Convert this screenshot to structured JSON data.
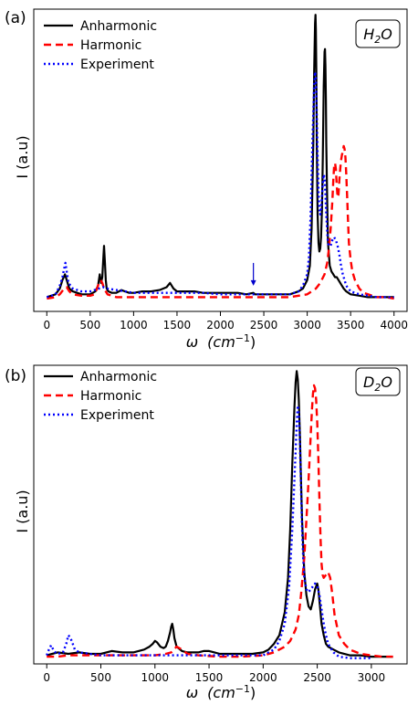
{
  "chart_data": [
    {
      "type": "line",
      "panel_label": "(a)",
      "badge_base": "H",
      "badge_sub": "2",
      "badge_tail": "O",
      "ylabel": "I  (a.u)",
      "xlabel_symbol": "ω",
      "xlabel_unit": "(cm",
      "xlabel_exp": "−1",
      "xlabel_close": ")",
      "xlim": [
        -150,
        4150
      ],
      "ylim": [
        -0.04,
        1.02
      ],
      "xticks": [
        0,
        500,
        1000,
        1500,
        2000,
        2500,
        3000,
        3500,
        4000
      ],
      "legend": "top-left",
      "arrow": {
        "x": 2380,
        "y_top": 0.13,
        "y_tip": 0.05,
        "color": "#0000cc"
      },
      "series": [
        {
          "name": "Anharmonic",
          "color": "#000000",
          "dash": "",
          "width": 2.2,
          "x": [
            0,
            100,
            150,
            180,
            210,
            230,
            260,
            300,
            400,
            500,
            560,
            590,
            610,
            625,
            640,
            650,
            660,
            670,
            680,
            690,
            710,
            750,
            800,
            860,
            900,
            950,
            1000,
            1100,
            1200,
            1300,
            1380,
            1420,
            1440,
            1460,
            1500,
            1600,
            1700,
            1800,
            1900,
            2000,
            2100,
            2200,
            2300,
            2380,
            2400,
            2500,
            2600,
            2700,
            2800,
            2900,
            2950,
            3000,
            3030,
            3050,
            3070,
            3080,
            3090,
            3095,
            3100,
            3105,
            3110,
            3120,
            3130,
            3140,
            3150,
            3160,
            3170,
            3180,
            3190,
            3200,
            3205,
            3210,
            3215,
            3220,
            3230,
            3240,
            3260,
            3280,
            3300,
            3320,
            3340,
            3360,
            3380,
            3400,
            3420,
            3450,
            3500,
            3600,
            3700,
            3800,
            3900,
            4000
          ],
          "y": [
            0.01,
            0.02,
            0.04,
            0.07,
            0.09,
            0.07,
            0.04,
            0.03,
            0.02,
            0.02,
            0.03,
            0.05,
            0.09,
            0.06,
            0.08,
            0.14,
            0.19,
            0.13,
            0.07,
            0.04,
            0.03,
            0.025,
            0.025,
            0.035,
            0.03,
            0.025,
            0.025,
            0.03,
            0.03,
            0.035,
            0.045,
            0.06,
            0.05,
            0.04,
            0.03,
            0.03,
            0.03,
            0.025,
            0.025,
            0.025,
            0.025,
            0.025,
            0.02,
            0.025,
            0.02,
            0.02,
            0.02,
            0.02,
            0.02,
            0.03,
            0.04,
            0.07,
            0.12,
            0.25,
            0.55,
            0.8,
            0.97,
            1.0,
            0.95,
            0.8,
            0.55,
            0.3,
            0.2,
            0.17,
            0.18,
            0.22,
            0.32,
            0.5,
            0.75,
            0.87,
            0.88,
            0.82,
            0.7,
            0.55,
            0.35,
            0.2,
            0.12,
            0.1,
            0.09,
            0.08,
            0.08,
            0.07,
            0.06,
            0.05,
            0.04,
            0.03,
            0.02,
            0.015,
            0.01,
            0.01,
            0.01,
            0.01
          ]
        },
        {
          "name": "Harmonic",
          "color": "#ff0000",
          "dash": "8,5",
          "width": 2.4,
          "x": [
            0,
            100,
            150,
            200,
            230,
            260,
            300,
            400,
            500,
            550,
            580,
            600,
            620,
            640,
            660,
            700,
            750,
            800,
            900,
            1000,
            1100,
            1200,
            1300,
            1400,
            1500,
            1600,
            1800,
            2000,
            2200,
            2400,
            2600,
            2800,
            2900,
            3000,
            3050,
            3100,
            3150,
            3200,
            3230,
            3250,
            3270,
            3290,
            3300,
            3310,
            3320,
            3330,
            3340,
            3350,
            3360,
            3370,
            3380,
            3390,
            3400,
            3410,
            3420,
            3430,
            3440,
            3450,
            3460,
            3470,
            3480,
            3500,
            3520,
            3550,
            3600,
            3650,
            3700,
            3800,
            3900,
            4000
          ],
          "y": [
            0.005,
            0.01,
            0.02,
            0.04,
            0.045,
            0.03,
            0.02,
            0.015,
            0.015,
            0.02,
            0.04,
            0.06,
            0.07,
            0.06,
            0.04,
            0.02,
            0.015,
            0.01,
            0.01,
            0.01,
            0.01,
            0.01,
            0.01,
            0.01,
            0.01,
            0.01,
            0.01,
            0.01,
            0.01,
            0.01,
            0.01,
            0.01,
            0.015,
            0.02,
            0.03,
            0.04,
            0.06,
            0.09,
            0.13,
            0.18,
            0.25,
            0.35,
            0.42,
            0.47,
            0.48,
            0.46,
            0.4,
            0.36,
            0.37,
            0.42,
            0.46,
            0.49,
            0.51,
            0.52,
            0.54,
            0.53,
            0.5,
            0.44,
            0.36,
            0.28,
            0.2,
            0.14,
            0.1,
            0.07,
            0.04,
            0.025,
            0.02,
            0.01,
            0.01,
            0.005
          ]
        },
        {
          "name": "Experiment",
          "color": "#0000ff",
          "dash": "2,3",
          "width": 2.4,
          "x": [
            0,
            100,
            150,
            180,
            200,
            215,
            230,
            250,
            300,
            400,
            500,
            550,
            600,
            650,
            700,
            800,
            900,
            1000,
            1200,
            1400,
            1500,
            1600,
            1800,
            2000,
            2200,
            2400,
            2600,
            2800,
            2900,
            2950,
            3000,
            3020,
            3040,
            3060,
            3080,
            3090,
            3100,
            3110,
            3120,
            3130,
            3140,
            3150,
            3160,
            3170,
            3180,
            3190,
            3200,
            3210,
            3220,
            3230,
            3240,
            3250,
            3270,
            3290,
            3310,
            3330,
            3350,
            3370,
            3390,
            3410,
            3430,
            3450,
            3500,
            3600,
            3700,
            3800,
            3900,
            4000
          ],
          "y": [
            0.01,
            0.02,
            0.05,
            0.08,
            0.11,
            0.13,
            0.1,
            0.06,
            0.04,
            0.03,
            0.03,
            0.035,
            0.04,
            0.045,
            0.04,
            0.035,
            0.03,
            0.025,
            0.025,
            0.025,
            0.025,
            0.025,
            0.025,
            0.02,
            0.02,
            0.02,
            0.02,
            0.02,
            0.03,
            0.05,
            0.09,
            0.15,
            0.3,
            0.55,
            0.75,
            0.8,
            0.78,
            0.65,
            0.5,
            0.38,
            0.32,
            0.3,
            0.32,
            0.36,
            0.41,
            0.44,
            0.43,
            0.37,
            0.3,
            0.24,
            0.2,
            0.19,
            0.19,
            0.21,
            0.22,
            0.21,
            0.19,
            0.16,
            0.12,
            0.09,
            0.07,
            0.05,
            0.03,
            0.02,
            0.015,
            0.01,
            0.01,
            0.01
          ]
        }
      ]
    },
    {
      "type": "line",
      "panel_label": "(b)",
      "badge_base": "D",
      "badge_sub": "2",
      "badge_tail": "O",
      "ylabel": "I  (a.u)",
      "xlabel_symbol": "ω",
      "xlabel_unit": "(cm",
      "xlabel_exp": "−1",
      "xlabel_close": ")",
      "xlim": [
        -120,
        3330
      ],
      "ylim": [
        -0.02,
        1.02
      ],
      "xticks": [
        0,
        500,
        1000,
        1500,
        2000,
        2500,
        3000
      ],
      "legend": "top-left",
      "series": [
        {
          "name": "Anharmonic",
          "color": "#000000",
          "dash": "",
          "width": 2.2,
          "x": [
            0,
            50,
            100,
            200,
            300,
            400,
            500,
            600,
            700,
            800,
            900,
            950,
            980,
            1000,
            1020,
            1050,
            1080,
            1100,
            1120,
            1140,
            1150,
            1160,
            1170,
            1180,
            1200,
            1250,
            1300,
            1400,
            1450,
            1500,
            1550,
            1600,
            1700,
            1800,
            1900,
            2000,
            2050,
            2100,
            2150,
            2200,
            2230,
            2250,
            2270,
            2290,
            2300,
            2310,
            2320,
            2330,
            2340,
            2350,
            2360,
            2380,
            2400,
            2420,
            2440,
            2460,
            2480,
            2500,
            2510,
            2520,
            2530,
            2540,
            2560,
            2580,
            2600,
            2650,
            2700,
            2800,
            2900,
            3000,
            3100,
            3200
          ],
          "y": [
            0.01,
            0.015,
            0.02,
            0.015,
            0.02,
            0.015,
            0.015,
            0.025,
            0.02,
            0.02,
            0.03,
            0.04,
            0.05,
            0.06,
            0.055,
            0.04,
            0.035,
            0.04,
            0.06,
            0.09,
            0.11,
            0.12,
            0.1,
            0.07,
            0.04,
            0.025,
            0.02,
            0.02,
            0.025,
            0.025,
            0.02,
            0.015,
            0.015,
            0.015,
            0.015,
            0.02,
            0.03,
            0.05,
            0.08,
            0.16,
            0.28,
            0.45,
            0.68,
            0.88,
            0.96,
            1.0,
            0.97,
            0.9,
            0.78,
            0.62,
            0.48,
            0.3,
            0.22,
            0.18,
            0.17,
            0.2,
            0.24,
            0.26,
            0.24,
            0.2,
            0.16,
            0.12,
            0.08,
            0.05,
            0.04,
            0.03,
            0.02,
            0.01,
            0.01,
            0.005,
            0.005,
            0.005
          ]
        },
        {
          "name": "Harmonic",
          "color": "#ff0000",
          "dash": "8,5",
          "width": 2.4,
          "x": [
            0,
            100,
            200,
            300,
            500,
            700,
            900,
            1000,
            1100,
            1150,
            1200,
            1250,
            1300,
            1400,
            1600,
            1800,
            2000,
            2100,
            2200,
            2250,
            2300,
            2330,
            2350,
            2380,
            2400,
            2420,
            2440,
            2450,
            2460,
            2470,
            2480,
            2490,
            2500,
            2510,
            2520,
            2530,
            2540,
            2550,
            2560,
            2580,
            2600,
            2620,
            2640,
            2660,
            2700,
            2750,
            2800,
            2900,
            3000,
            3100,
            3200
          ],
          "y": [
            0.005,
            0.005,
            0.01,
            0.01,
            0.01,
            0.01,
            0.01,
            0.01,
            0.015,
            0.02,
            0.04,
            0.03,
            0.015,
            0.01,
            0.005,
            0.005,
            0.01,
            0.02,
            0.04,
            0.06,
            0.1,
            0.15,
            0.22,
            0.35,
            0.48,
            0.62,
            0.78,
            0.86,
            0.92,
            0.95,
            0.94,
            0.9,
            0.82,
            0.7,
            0.55,
            0.42,
            0.33,
            0.29,
            0.28,
            0.29,
            0.3,
            0.28,
            0.22,
            0.15,
            0.08,
            0.05,
            0.03,
            0.015,
            0.01,
            0.005,
            0.005
          ]
        },
        {
          "name": "Experiment",
          "color": "#0000ff",
          "dash": "2,3",
          "width": 2.4,
          "x": [
            0,
            20,
            40,
            60,
            80,
            100,
            150,
            180,
            200,
            220,
            240,
            260,
            300,
            400,
            500,
            700,
            900,
            1100,
            1200,
            1300,
            1500,
            1700,
            1900,
            2000,
            2100,
            2150,
            2200,
            2240,
            2270,
            2300,
            2310,
            2320,
            2330,
            2340,
            2350,
            2360,
            2370,
            2380,
            2400,
            2420,
            2440,
            2460,
            2480,
            2500,
            2520,
            2540,
            2560,
            2580,
            2600,
            2650,
            2700,
            2800,
            3000
          ],
          "y": [
            0.01,
            0.03,
            0.045,
            0.03,
            0.02,
            0.015,
            0.02,
            0.05,
            0.08,
            0.07,
            0.05,
            0.03,
            0.02,
            0.015,
            0.01,
            0.01,
            0.01,
            0.01,
            0.01,
            0.01,
            0.01,
            0.01,
            0.01,
            0.01,
            0.03,
            0.06,
            0.12,
            0.25,
            0.45,
            0.72,
            0.82,
            0.88,
            0.85,
            0.75,
            0.6,
            0.45,
            0.35,
            0.28,
            0.24,
            0.23,
            0.24,
            0.25,
            0.26,
            0.25,
            0.22,
            0.17,
            0.12,
            0.08,
            0.05,
            0.02,
            0.005,
            0.0,
            0.0
          ]
        }
      ]
    }
  ]
}
